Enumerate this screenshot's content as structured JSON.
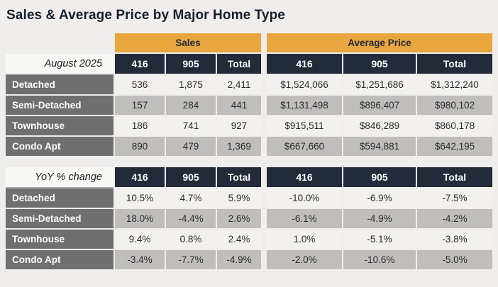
{
  "page": {
    "title": "Sales & Average Price by Major Home Type"
  },
  "colors": {
    "band_orange": "#e9a63e",
    "header_navy": "#232a39",
    "row_label_gray": "#6f6f6f",
    "row_light": "#f2f1ef",
    "row_dark": "#bfbebc",
    "page_background": "#efeeec"
  },
  "chart_data": {
    "type": "table",
    "title": "Sales & Average Price by Major Home Type",
    "group_headers": [
      {
        "label": "Sales",
        "colspan": 3
      },
      {
        "label": "Average Price",
        "colspan": 3
      }
    ],
    "sections": [
      {
        "corner_label": "August 2025",
        "column_headers": [
          "416",
          "905",
          "Total",
          "416",
          "905",
          "Total"
        ],
        "rows": [
          {
            "label": "Detached",
            "cells": [
              "536",
              "1,875",
              "2,411",
              "$1,524,066",
              "$1,251,686",
              "$1,312,240"
            ]
          },
          {
            "label": "Semi-Detached",
            "cells": [
              "157",
              "284",
              "441",
              "$1,131,498",
              "$896,407",
              "$980,102"
            ]
          },
          {
            "label": "Townhouse",
            "cells": [
              "186",
              "741",
              "927",
              "$915,511",
              "$846,289",
              "$860,178"
            ]
          },
          {
            "label": "Condo Apt",
            "cells": [
              "890",
              "479",
              "1,369",
              "$667,660",
              "$594,881",
              "$642,195"
            ]
          }
        ]
      },
      {
        "corner_label": "YoY % change",
        "column_headers": [
          "416",
          "905",
          "Total",
          "416",
          "905",
          "Total"
        ],
        "rows": [
          {
            "label": "Detached",
            "cells": [
              "10.5%",
              "4.7%",
              "5.9%",
              "-10.0%",
              "-6.9%",
              "-7.5%"
            ]
          },
          {
            "label": "Semi-Detached",
            "cells": [
              "18.0%",
              "-4.4%",
              "2.6%",
              "-6.1%",
              "-4.9%",
              "-4.2%"
            ]
          },
          {
            "label": "Townhouse",
            "cells": [
              "9.4%",
              "0.8%",
              "2.4%",
              "1.0%",
              "-5.1%",
              "-3.8%"
            ]
          },
          {
            "label": "Condo Apt",
            "cells": [
              "-3.4%",
              "-7.7%",
              "-4.9%",
              "-2.0%",
              "-10.6%",
              "-5.0%"
            ]
          }
        ]
      }
    ]
  }
}
